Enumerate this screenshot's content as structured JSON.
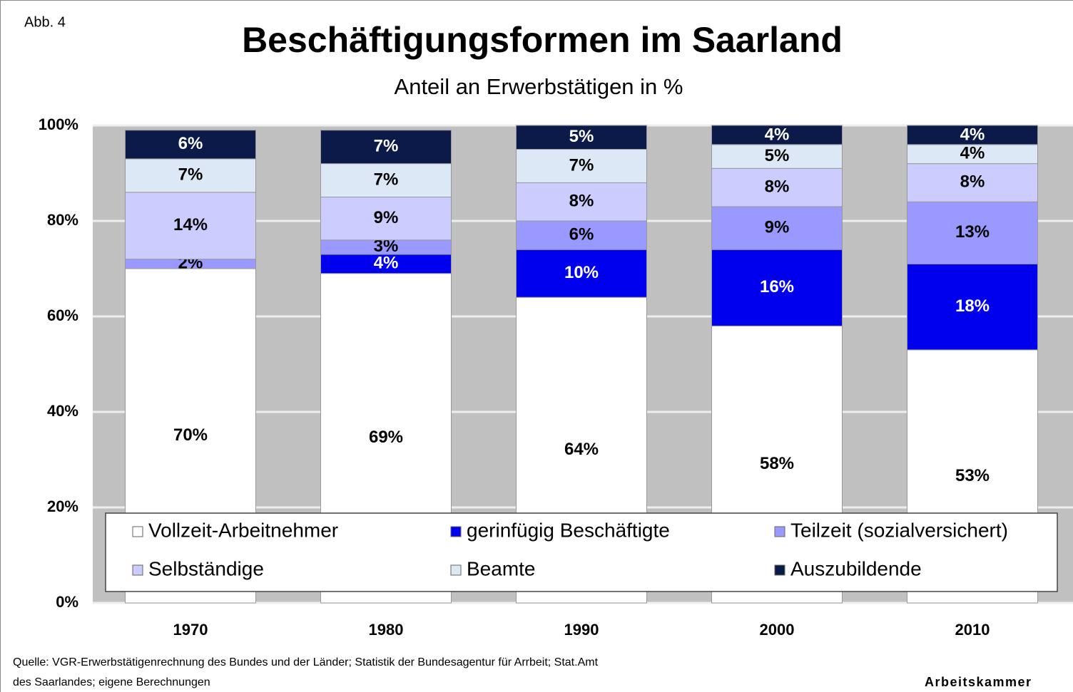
{
  "chart_data": {
    "type": "stacked_bar",
    "figure_label": "Abb. 4",
    "title": "Beschäftigungsformen im Saarland",
    "subtitle": "Anteil an Erwerbstätigen in %",
    "categories": [
      "1970",
      "1980",
      "1990",
      "2000",
      "2010"
    ],
    "series": [
      {
        "name": "Vollzeit-Arbeitnehmer",
        "color": "#ffffff",
        "values": [
          70,
          69,
          64,
          58,
          53
        ],
        "value_labels": [
          "70%",
          "69%",
          "64%",
          "58%",
          "53%"
        ]
      },
      {
        "name": "gerinfügig Beschäftigte",
        "color": "#0000ee",
        "values": [
          null,
          4,
          10,
          16,
          18
        ],
        "value_labels": [
          null,
          "4%",
          "10%",
          "16%",
          "18%"
        ]
      },
      {
        "name": "Teilzeit (sozialversichert)",
        "color": "#9999ff",
        "values": [
          2,
          3,
          6,
          9,
          13
        ],
        "value_labels": [
          "2%",
          "3%",
          "6%",
          "9%",
          "13%"
        ]
      },
      {
        "name": "Selbständige",
        "color": "#ccccff",
        "values": [
          14,
          9,
          8,
          8,
          8
        ],
        "value_labels": [
          "14%",
          "9%",
          "8%",
          "8%",
          "8%"
        ]
      },
      {
        "name": "Beamte",
        "color": "#dde8f6",
        "values": [
          7,
          7,
          7,
          5,
          4
        ],
        "value_labels": [
          "7%",
          "7%",
          "7%",
          "5%",
          "4%"
        ]
      },
      {
        "name": "Auszubildende",
        "color": "#0b1a48",
        "values": [
          6,
          7,
          5,
          4,
          4
        ],
        "value_labels": [
          "6%",
          "7%",
          "5%",
          "4%",
          "4%"
        ]
      }
    ],
    "ylim": [
      0,
      100
    ],
    "yticks": [
      {
        "value": 0,
        "label": "0%"
      },
      {
        "value": 20,
        "label": "20%"
      },
      {
        "value": 40,
        "label": "40%"
      },
      {
        "value": 60,
        "label": "60%"
      },
      {
        "value": 80,
        "label": "80%"
      },
      {
        "value": 100,
        "label": "100%"
      }
    ],
    "grid": true,
    "legend": "bottom",
    "source": [
      "Quelle: VGR-Erwerbstätigenrechnung des Bundes und der Länder; Statistik der Bundesagentur für Arrbeit; Stat.Amt",
      "des Saarlandes; eigene Berechnungen"
    ],
    "publisher": "Arbeitskammer"
  }
}
